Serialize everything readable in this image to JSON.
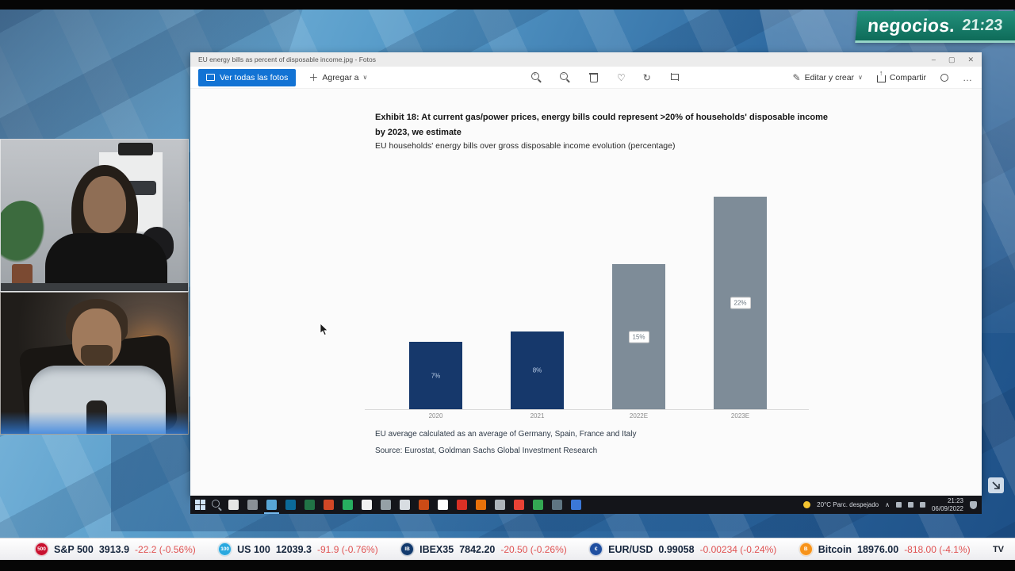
{
  "channel": {
    "logo": "negocios.",
    "time": "21:23"
  },
  "window": {
    "title": "EU energy bills as percent of disposable income.jpg - Fotos",
    "toolbar": {
      "see_all_photos": "Ver todas las fotos",
      "add_to": "Agregar a",
      "center_icons": [
        "zoom-in",
        "zoom-out",
        "delete",
        "favorite",
        "rotate",
        "crop"
      ],
      "edit_create": "Editar y crear",
      "chevron": "∨",
      "share": "Compartir",
      "more": "…"
    }
  },
  "chart_data": {
    "type": "bar",
    "title": "Exhibit 18: At current gas/power prices, energy bills could represent >20% of households' disposable income by 2023, we estimate",
    "subtitle": "EU households' energy bills over gross disposable income evolution (percentage)",
    "categories": [
      "2020",
      "2021",
      "2022E",
      "2023E"
    ],
    "values": [
      7,
      8,
      15,
      22
    ],
    "bar_labels": [
      "7%",
      "8%",
      "15%",
      "22%"
    ],
    "bar_colors": [
      "#16386b",
      "#16386b",
      "#7e8c98",
      "#7e8c98"
    ],
    "label_styles": [
      "plain",
      "plain",
      "boxed",
      "boxed"
    ],
    "ylim": [
      0,
      24
    ],
    "grid": false,
    "legend": "none",
    "footnote": "EU average calculated as an average of Germany, Spain, France and Italy",
    "source": "Source: Eurostat, Goldman Sachs Global Investment Research"
  },
  "taskbar": {
    "weather": "20°C  Parc. despejado",
    "chevron": "∧",
    "tray_time": "21:23",
    "tray_date": "06/09/2022",
    "app_icons": [
      {
        "name": "taskbar-app-1",
        "color": "#e6e6e6"
      },
      {
        "name": "taskbar-app-2",
        "color": "#8a9096"
      },
      {
        "name": "taskbar-app-3",
        "color": "#58a6d6"
      },
      {
        "name": "taskbar-app-4",
        "color": "#0b6a99"
      },
      {
        "name": "taskbar-app-5",
        "color": "#217346"
      },
      {
        "name": "taskbar-app-6",
        "color": "#d24726"
      },
      {
        "name": "taskbar-app-7",
        "color": "#27ae60"
      },
      {
        "name": "taskbar-app-8",
        "color": "#f2f2f2"
      },
      {
        "name": "taskbar-app-9",
        "color": "#95a0a6"
      },
      {
        "name": "taskbar-app-10",
        "color": "#d8dde2"
      },
      {
        "name": "taskbar-app-11",
        "color": "#cc4b16"
      },
      {
        "name": "taskbar-app-12",
        "color": "#ffffff"
      },
      {
        "name": "taskbar-app-13",
        "color": "#d93025"
      },
      {
        "name": "taskbar-app-14",
        "color": "#e8710a"
      },
      {
        "name": "taskbar-app-15",
        "color": "#aeb4ba"
      },
      {
        "name": "taskbar-app-16",
        "color": "#e94235"
      },
      {
        "name": "taskbar-app-17",
        "color": "#34a853"
      },
      {
        "name": "taskbar-app-18",
        "color": "#5f7582"
      },
      {
        "name": "taskbar-app-19",
        "color": "#3b78d8"
      }
    ]
  },
  "ticker": {
    "items": [
      {
        "symbol": "S&P 500",
        "value": "3913.9",
        "change": "-22.2 (-0.56%)",
        "icon_bg": "#c8102e",
        "icon_text": "500"
      },
      {
        "symbol": "US 100",
        "value": "12039.3",
        "change": "-91.9 (-0.76%)",
        "icon_bg": "#29a8df",
        "icon_text": "100"
      },
      {
        "symbol": "IBEX35",
        "value": "7842.20",
        "change": "-20.50 (-0.26%)",
        "icon_bg": "#123a6d",
        "icon_text": "IB"
      },
      {
        "symbol": "EUR/USD",
        "value": "0.99058",
        "change": "-0.00234 (-0.24%)",
        "icon_bg": "#1f4fa0",
        "icon_text": "€"
      },
      {
        "symbol": "Bitcoin",
        "value": "18976.00",
        "change": "-818.00 (-4.1%)",
        "icon_bg": "#f7931a",
        "icon_text": "B"
      }
    ],
    "brand": "TV"
  }
}
